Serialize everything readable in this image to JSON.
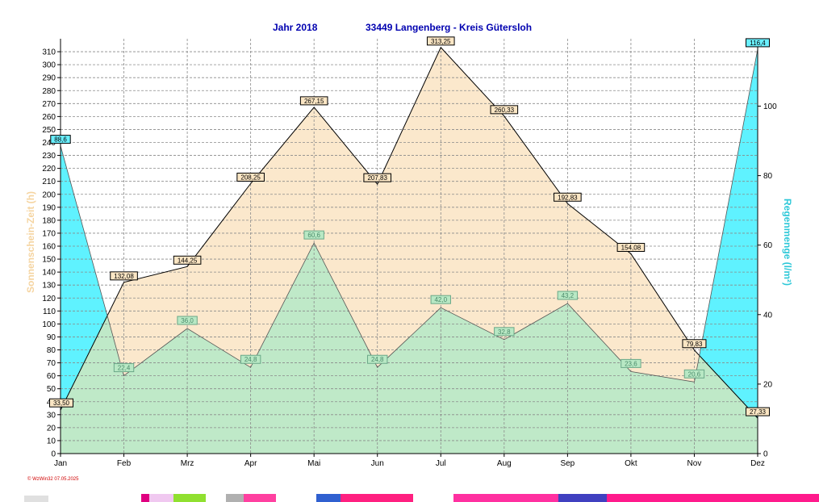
{
  "header": {
    "year_label": "Jahr  2018",
    "location": "33449 Langenberg - Kreis Gütersloh"
  },
  "footer": {
    "stamp": "© WzWin32  07.05.2025"
  },
  "colors": {
    "sunshine_fill": "#fbe8cc",
    "rain_fill": "#5ff2ff",
    "temp_fill": "#bfe9c8",
    "grid": "#8a8a8a",
    "sun_label_bg": "#fbe6c4",
    "rain_label_bg": "#6af0ff",
    "green_label_bg": "#b8e8c4",
    "green_label_border": "#6aa888",
    "title": "#0000b0"
  },
  "chart_data": {
    "type": "area",
    "categories": [
      "Jan",
      "Feb",
      "Mrz",
      "Apr",
      "Mai",
      "Jun",
      "Jul",
      "Aug",
      "Sep",
      "Okt",
      "Nov",
      "Dez"
    ],
    "ylabel_left": "Sonnenschein-Zeit  (h)",
    "ylabel_right": "Regenmenge    (l/m²)",
    "ylim_left": [
      0,
      320
    ],
    "yticks_left": [
      0,
      10,
      20,
      30,
      40,
      50,
      60,
      70,
      80,
      90,
      100,
      110,
      120,
      130,
      140,
      150,
      160,
      170,
      180,
      190,
      200,
      210,
      220,
      230,
      240,
      250,
      260,
      270,
      280,
      290,
      300,
      310
    ],
    "ylim_right": [
      0,
      119.4
    ],
    "yticks_right": [
      0,
      20,
      40,
      60,
      80,
      100
    ],
    "grid": true,
    "series": [
      {
        "name": "Sonnenschein-Zeit",
        "axis": "left",
        "values": [
          33.5,
          132.08,
          144.25,
          208.25,
          267.15,
          207.83,
          313.25,
          260.33,
          192.83,
          154.08,
          79.83,
          27.33
        ],
        "labels": [
          "33,50",
          "132,08",
          "144,25",
          "208,25",
          "267,15",
          "207,83",
          "313,25",
          "260,33",
          "192,83",
          "154,08",
          "79,83",
          "27,33"
        ]
      },
      {
        "name": "Regenmenge",
        "axis": "right",
        "values": [
          88.6,
          null,
          null,
          null,
          null,
          null,
          null,
          null,
          null,
          null,
          null,
          116.4
        ],
        "labels": [
          "88,6",
          "",
          "",
          "",
          "",
          "",
          "",
          "",
          "",
          "",
          "",
          "116,4"
        ]
      },
      {
        "axis": "right",
        "values": [
          null,
          22.4,
          36.0,
          24.8,
          60.6,
          24.8,
          42.0,
          32.8,
          43.2,
          23.6,
          20.6,
          null
        ],
        "labels": [
          "",
          "22,4",
          "36,0",
          "24,8",
          "60,6",
          "24,8",
          "42,0",
          "32,8",
          "43,2",
          "23,6",
          "20,6",
          ""
        ]
      }
    ]
  }
}
